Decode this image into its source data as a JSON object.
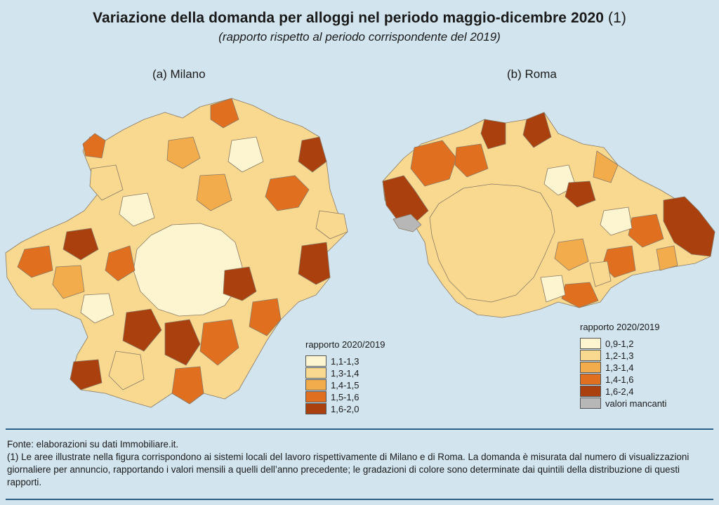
{
  "title": {
    "text": "Variazione della domanda per alloggi nel periodo maggio-dicembre 2020",
    "note": "(1)"
  },
  "subtitle": "(rapporto rispetto al periodo corrispondente del 2019)",
  "panels": {
    "milano": {
      "label": "(a) Milano",
      "legend_title": "rapporto 2020/2019",
      "classes": [
        {
          "label": "1,1-1,3",
          "color": "#fdf5d0"
        },
        {
          "label": "1,3-1,4",
          "color": "#f8d98f"
        },
        {
          "label": "1,4-1,5",
          "color": "#f2ac4c"
        },
        {
          "label": "1,5-1,6",
          "color": "#e0701f"
        },
        {
          "label": "1,6-2,0",
          "color": "#a9400e"
        }
      ]
    },
    "roma": {
      "label": "(b) Roma",
      "legend_title": "rapporto 2020/2019",
      "classes": [
        {
          "label": "0,9-1,2",
          "color": "#fdf5d0"
        },
        {
          "label": "1,2-1,3",
          "color": "#f8d98f"
        },
        {
          "label": "1,3-1,4",
          "color": "#f2ac4c"
        },
        {
          "label": "1,4-1,6",
          "color": "#e0701f"
        },
        {
          "label": "1,6-2,4",
          "color": "#a9400e"
        },
        {
          "label": "valori mancanti",
          "color": "#b7b7b7"
        }
      ]
    }
  },
  "footer": {
    "source": "Fonte: elaborazioni su dati Immobiliare.it.",
    "note": "(1) Le aree illustrate nella figura corrispondono ai sistemi locali del lavoro rispettivamente di Milano e di Roma. La domanda è misurata dal numero di visualizzazioni giornaliere per annuncio, rapportando i valori mensili a quelli dell’anno precedente; le gradazioni di colore sono determinate dai quintili della distribuzione di questi rapporti."
  }
}
